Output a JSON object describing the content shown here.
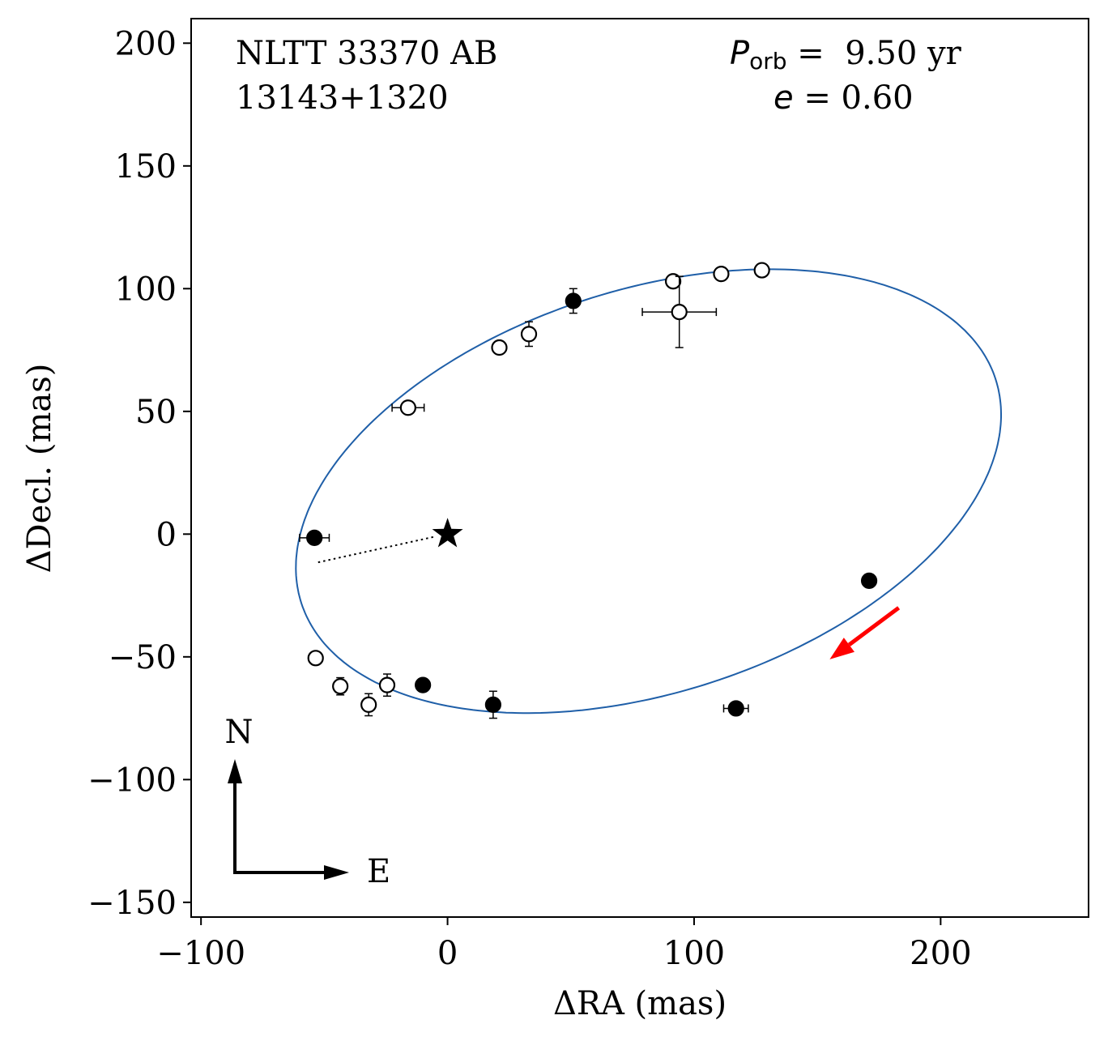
{
  "chart_data": {
    "type": "scatter",
    "xlabel": "ΔRA  (mas)",
    "ylabel": "ΔDecl.  (mas)",
    "xlim": [
      -104,
      260
    ],
    "ylim": [
      -156,
      210
    ],
    "xticks": [
      -100,
      0,
      100,
      200
    ],
    "yticks": [
      -150,
      -100,
      -50,
      0,
      50,
      100,
      150,
      200
    ],
    "grid": false,
    "labels": {
      "name": "NLTT 33370 AB",
      "designation": "13143+1320",
      "period_symbol": "P",
      "period_subscript": "orb",
      "period_value": " =  9.50 yr",
      "ecc_symbol": "e",
      "ecc_value": " = 0.60",
      "compass_north": "N",
      "compass_east": "E"
    },
    "orbit": {
      "period_yr": 9.5,
      "eccentricity": 0.6,
      "center": [
        81.5,
        17.5
      ],
      "semi_major": 148,
      "semi_minor": 82,
      "rotation_deg": 18,
      "color": "#1f5fa8"
    },
    "primary": {
      "x": 0,
      "y": 0,
      "marker": "star"
    },
    "node_line": {
      "from": [
        -52.5,
        -11.5
      ],
      "to": [
        -5,
        -1
      ]
    },
    "direction_arrow": {
      "from": [
        183,
        -30
      ],
      "to": [
        155,
        -51
      ],
      "color": "#ff0000"
    },
    "series": [
      {
        "name": "filled",
        "marker": "filled-circle",
        "points": [
          {
            "x": -54,
            "y": -1.5,
            "xerr": 6,
            "yerr": 0
          },
          {
            "x": 51,
            "y": 95,
            "xerr": 0,
            "yerr": 5
          },
          {
            "x": -10,
            "y": -61.5,
            "xerr": 0,
            "yerr": 0
          },
          {
            "x": 18.5,
            "y": -69.5,
            "xerr": 0,
            "yerr": 5.5
          },
          {
            "x": 171,
            "y": -19,
            "xerr": 0,
            "yerr": 0
          },
          {
            "x": 117,
            "y": -71,
            "xerr": 5,
            "yerr": 0
          }
        ]
      },
      {
        "name": "open",
        "marker": "open-circle",
        "points": [
          {
            "x": -53.5,
            "y": -50.5,
            "xerr": 0,
            "yerr": 0
          },
          {
            "x": -43.5,
            "y": -62,
            "xerr": 0,
            "yerr": 3.5
          },
          {
            "x": -32,
            "y": -69.5,
            "xerr": 0,
            "yerr": 4.5
          },
          {
            "x": -24.5,
            "y": -61.5,
            "xerr": 0,
            "yerr": 4.5
          },
          {
            "x": -16,
            "y": 51.5,
            "xerr": 6.5,
            "yerr": 0
          },
          {
            "x": 21,
            "y": 76,
            "xerr": 0,
            "yerr": 0
          },
          {
            "x": 33,
            "y": 81.5,
            "xerr": 0,
            "yerr": 5
          },
          {
            "x": 91.5,
            "y": 103,
            "xerr": 0,
            "yerr": 0
          },
          {
            "x": 94,
            "y": 90.5,
            "xerr": 15,
            "yerr": 14.5
          },
          {
            "x": 111,
            "y": 106,
            "xerr": 0,
            "yerr": 0
          },
          {
            "x": 127.5,
            "y": 107.5,
            "xerr": 0,
            "yerr": 0
          }
        ]
      }
    ]
  }
}
